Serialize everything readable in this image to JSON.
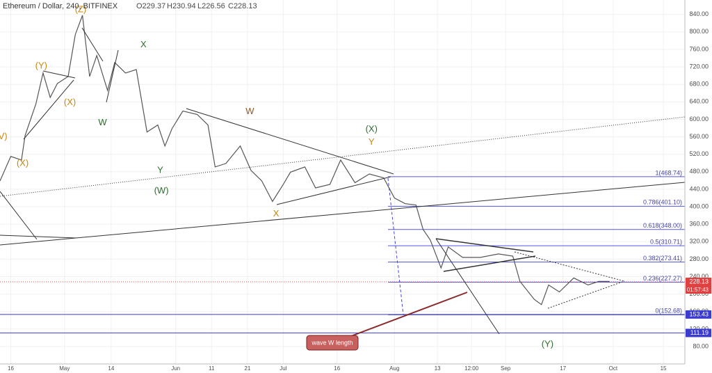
{
  "chart_data": {
    "type": "line",
    "title": "Ethereum / Dollar, 240, BITFINEX",
    "ohlc": [
      "O229.37",
      "H230.94",
      "L226.56",
      "C228.13"
    ],
    "x": [
      103,
      106,
      109,
      110,
      113,
      115,
      117,
      119,
      122,
      124,
      126,
      128,
      130,
      133,
      135,
      138,
      141,
      144,
      147,
      149,
      151,
      154,
      158,
      161,
      163,
      166,
      170,
      173,
      176,
      179,
      182,
      184,
      188,
      191,
      195,
      198,
      202,
      206,
      210,
      213,
      216,
      219,
      221,
      223,
      226,
      228,
      232,
      237,
      242,
      246,
      248,
      252,
      254,
      256,
      259,
      263,
      267,
      270,
      273
    ],
    "values": [
      459,
      515,
      507,
      563,
      635,
      706,
      650,
      682,
      698,
      794,
      838,
      698,
      746,
      666,
      730,
      706,
      714,
      571,
      587,
      539,
      579,
      619,
      611,
      587,
      491,
      499,
      539,
      483,
      459,
      412,
      451,
      479,
      491,
      443,
      451,
      507,
      455,
      475,
      466,
      420,
      407,
      404,
      348,
      324,
      260,
      308,
      284,
      284,
      292,
      287,
      229,
      188,
      176,
      221,
      205,
      237,
      221,
      229,
      229
    ],
    "color": "#555555",
    "xlim": [
      103,
      294
    ],
    "xticks": [
      {
        "value": 106,
        "label": "16"
      },
      {
        "value": 121,
        "label": "May"
      },
      {
        "value": 134,
        "label": "14"
      },
      {
        "value": 152,
        "label": "Jun"
      },
      {
        "value": 162,
        "label": "11"
      },
      {
        "value": 172,
        "label": "21"
      },
      {
        "value": 182,
        "label": "Jul"
      },
      {
        "value": 197,
        "label": "16"
      },
      {
        "value": 213,
        "label": "Aug"
      },
      {
        "value": 225,
        "label": "13"
      },
      {
        "value": 234.5,
        "label": "12:00"
      },
      {
        "value": 244,
        "label": "Sep"
      },
      {
        "value": 260,
        "label": "17"
      },
      {
        "value": 274,
        "label": "Oct"
      },
      {
        "value": 288,
        "label": "15"
      }
    ],
    "ylim": [
      45,
      873
    ],
    "yticks": [
      {
        "value": 840,
        "label": "840.00"
      },
      {
        "value": 800,
        "label": "800.00"
      },
      {
        "value": 760,
        "label": "760.00"
      },
      {
        "value": 720,
        "label": "720.00"
      },
      {
        "value": 680,
        "label": "680.00"
      },
      {
        "value": 640,
        "label": "640.00"
      },
      {
        "value": 600,
        "label": "600.00"
      },
      {
        "value": 560,
        "label": "560.00"
      },
      {
        "value": 520,
        "label": "520.00"
      },
      {
        "value": 480,
        "label": "480.00"
      },
      {
        "value": 440,
        "label": "440.00"
      },
      {
        "value": 400,
        "label": "400.00"
      },
      {
        "value": 360,
        "label": "360.00"
      },
      {
        "value": 320,
        "label": "320.00"
      },
      {
        "value": 280,
        "label": "280.00"
      },
      {
        "value": 240,
        "label": "240.00"
      },
      {
        "value": 200,
        "label": "200.00"
      },
      {
        "value": 160,
        "label": "160.00"
      },
      {
        "value": 120,
        "label": "120.00"
      },
      {
        "value": 80,
        "label": "80.00"
      }
    ],
    "fib_levels": [
      {
        "value": 468.74,
        "label": "1(468.74)"
      },
      {
        "value": 401.1,
        "label": "0.786(401.10)"
      },
      {
        "value": 348.0,
        "label": "0.618(348.00)"
      },
      {
        "value": 310.71,
        "label": "0.5(310.71)"
      },
      {
        "value": 273.41,
        "label": "0.382(273.41)"
      },
      {
        "value": 227.27,
        "label": "0.236(227.27)"
      },
      {
        "value": 152.68,
        "label": "0(152.68)"
      }
    ],
    "price_tags": [
      {
        "value": 228.13,
        "label": "228.13",
        "color": "#e04040"
      },
      {
        "value": 153.43,
        "label": "153.43",
        "color": "#3b3bd0"
      },
      {
        "value": 111.19,
        "label": "111.19",
        "color": "#3b3bd0"
      }
    ],
    "countdown": "01:57:43",
    "callout": "wave W length",
    "annotations": [
      {
        "text": "(Z)",
        "x": 125.5,
        "y": 851,
        "color": "#c8860a"
      },
      {
        "text": "(Y)",
        "x": 114.5,
        "y": 722,
        "color": "#c8860a"
      },
      {
        "text": "(X)",
        "x": 122.5,
        "y": 638,
        "color": "#c8860a"
      },
      {
        "text": "(X)",
        "x": 109.3,
        "y": 499,
        "color": "#c8860a"
      },
      {
        "text": "V)",
        "x": 103.8,
        "y": 560,
        "color": "#c8860a"
      },
      {
        "text": "X",
        "x": 143,
        "y": 770,
        "color": "#2e6b2e"
      },
      {
        "text": "W",
        "x": 131.6,
        "y": 592,
        "color": "#2e6b2e"
      },
      {
        "text": "Y",
        "x": 147.7,
        "y": 483,
        "color": "#2e6b2e"
      },
      {
        "text": "(W)",
        "x": 148,
        "y": 436,
        "color": "#2e6b2e"
      },
      {
        "text": "W",
        "x": 172.7,
        "y": 617,
        "color": "#8b5a2b"
      },
      {
        "text": "X",
        "x": 180,
        "y": 383,
        "color": "#c8860a"
      },
      {
        "text": "(X)",
        "x": 206.6,
        "y": 577,
        "color": "#2e6b2e"
      },
      {
        "text": "Y",
        "x": 206.6,
        "y": 547,
        "color": "#c8860a"
      },
      {
        "text": "(Y)",
        "x": 255.7,
        "y": 85,
        "color": "#2e6b2e"
      }
    ]
  }
}
